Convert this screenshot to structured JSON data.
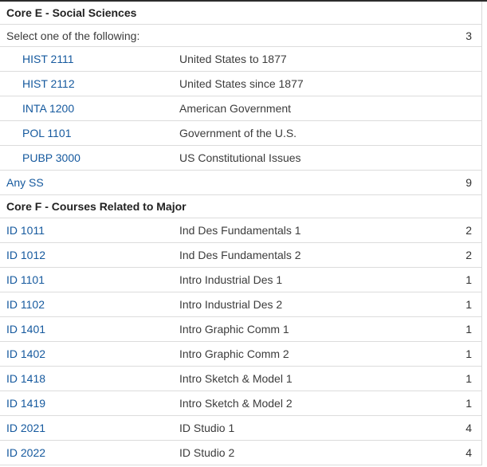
{
  "meta": {
    "link_color": "#15599e",
    "row_border_color": "#dcdcdc",
    "top_border_color": "#2c2c2c",
    "header_text_color": "#222222",
    "body_text_color": "#3c3c3c"
  },
  "rows": [
    {
      "type": "header",
      "text": "Core E - Social Sciences"
    },
    {
      "type": "comment",
      "text": "Select one of the following:",
      "hours": "3"
    },
    {
      "type": "course",
      "indent": true,
      "code": "HIST 2111",
      "title": "United States to 1877",
      "hours": ""
    },
    {
      "type": "course",
      "indent": true,
      "code": "HIST 2112",
      "title": "United States since 1877",
      "hours": ""
    },
    {
      "type": "course",
      "indent": true,
      "code": "INTA 1200",
      "title": "American Government",
      "hours": ""
    },
    {
      "type": "course",
      "indent": true,
      "code": "POL 1101",
      "title": "Government of the U.S.",
      "hours": ""
    },
    {
      "type": "course",
      "indent": true,
      "code": "PUBP 3000",
      "title": "US Constitutional Issues",
      "hours": ""
    },
    {
      "type": "course",
      "indent": false,
      "code": "Any SS",
      "title": "",
      "hours": "9"
    },
    {
      "type": "header",
      "text": "Core F - Courses Related to Major"
    },
    {
      "type": "course",
      "indent": false,
      "code": "ID 1011",
      "title": "Ind Des Fundamentals 1",
      "hours": "2"
    },
    {
      "type": "course",
      "indent": false,
      "code": "ID 1012",
      "title": "Ind Des Fundamentals 2",
      "hours": "2"
    },
    {
      "type": "course",
      "indent": false,
      "code": "ID 1101",
      "title": "Intro Industrial Des 1",
      "hours": "1"
    },
    {
      "type": "course",
      "indent": false,
      "code": "ID 1102",
      "title": "Intro Industrial Des 2",
      "hours": "1"
    },
    {
      "type": "course",
      "indent": false,
      "code": "ID 1401",
      "title": "Intro Graphic Comm 1",
      "hours": "1"
    },
    {
      "type": "course",
      "indent": false,
      "code": "ID 1402",
      "title": "Intro Graphic Comm 2",
      "hours": "1"
    },
    {
      "type": "course",
      "indent": false,
      "code": "ID 1418",
      "title": "Intro Sketch & Model 1",
      "hours": "1"
    },
    {
      "type": "course",
      "indent": false,
      "code": "ID 1419",
      "title": "Intro Sketch & Model 2",
      "hours": "1"
    },
    {
      "type": "course",
      "indent": false,
      "code": "ID 2021",
      "title": "ID Studio 1",
      "hours": "4"
    },
    {
      "type": "course",
      "indent": false,
      "code": "ID 2022",
      "title": "ID Studio 2",
      "hours": "4"
    }
  ]
}
